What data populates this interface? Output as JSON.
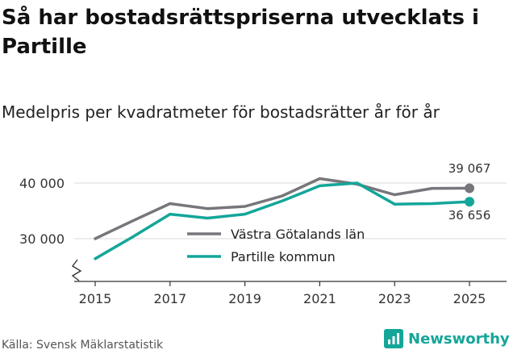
{
  "title": "Så har bostadsrättspriserna utvecklats i Partille",
  "subtitle": "Medelpris per kvadratmeter för bostadsrätter år för år",
  "source": "Källa: Svensk Mäklarstatistik",
  "brand": "Newsworthy",
  "colors": {
    "series1": "#77767b",
    "series2": "#13a699",
    "grid": "#d9d9d9",
    "axis": "#333333"
  },
  "chart_data": {
    "type": "line",
    "title": "Så har bostadsrättspriserna utvecklats i Partille",
    "subtitle": "Medelpris per kvadratmeter för bostadsrätter år för år",
    "xlabel": "",
    "ylabel": "",
    "x": [
      2015,
      2016,
      2017,
      2018,
      2019,
      2020,
      2021,
      2022,
      2023,
      2024,
      2025
    ],
    "x_ticks": [
      "2015",
      "2017",
      "2019",
      "2021",
      "2023",
      "2025"
    ],
    "y_ticks": [
      "30 000",
      "40 000"
    ],
    "ylim": [
      26000,
      44000
    ],
    "axis_break": true,
    "legend_position": "center",
    "series": [
      {
        "name": "Västra Götalands län",
        "values": [
          30000,
          33200,
          36300,
          35400,
          35800,
          37700,
          40800,
          39800,
          37900,
          39050,
          39067
        ],
        "end_label": "39 067"
      },
      {
        "name": "Partille kommun",
        "values": [
          26400,
          30300,
          34400,
          33700,
          34400,
          36800,
          39500,
          40000,
          36200,
          36300,
          36656
        ],
        "end_label": "36 656"
      }
    ]
  }
}
